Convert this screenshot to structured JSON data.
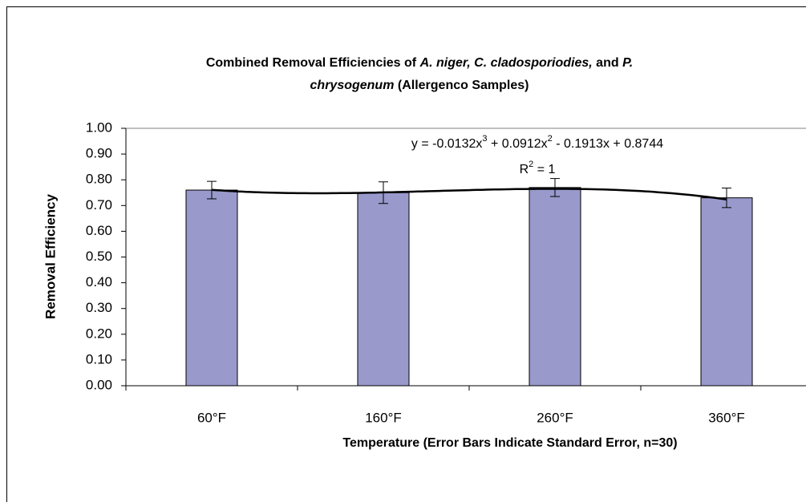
{
  "chart_data": {
    "type": "bar",
    "title_lines": [
      [
        {
          "text": "Combined Removal Efficiencies of "
        },
        {
          "text": "A. niger, C. cladosporiodies,",
          "italic": true
        },
        {
          "text": " and "
        },
        {
          "text": "P.",
          "italic": true
        }
      ],
      [
        {
          "text": "chrysogenum",
          "italic": true
        },
        {
          "text": "  (Allergenco Samples)"
        }
      ]
    ],
    "xlabel": "Temperature (Error Bars Indicate Standard Error, n=30)",
    "ylabel": "Removal Efficiency",
    "categories": [
      "60°F",
      "160°F",
      "260°F",
      "360°F"
    ],
    "values": [
      0.76,
      0.75,
      0.77,
      0.73
    ],
    "errors": [
      0.034,
      0.042,
      0.035,
      0.038
    ],
    "color": "#9999cc",
    "ylim": [
      0,
      1
    ],
    "yticks": [
      {
        "value": 0,
        "label": "0.00"
      },
      {
        "value": 0.1,
        "label": "0.10"
      },
      {
        "value": 0.2,
        "label": "0.20"
      },
      {
        "value": 0.3,
        "label": "0.30"
      },
      {
        "value": 0.4,
        "label": "0.40"
      },
      {
        "value": 0.5,
        "label": "0.50"
      },
      {
        "value": 0.6,
        "label": "0.60"
      },
      {
        "value": 0.7,
        "label": "0.70"
      },
      {
        "value": 0.8,
        "label": "0.80"
      },
      {
        "value": 0.9,
        "label": "0.90"
      },
      {
        "value": 1,
        "label": "1.00"
      }
    ],
    "trendline": {
      "coefficients": [
        -0.0132,
        0.0912,
        -0.1913,
        0.8744
      ],
      "equation_parts": [
        "y = -0.0132x",
        "3",
        " + 0.0912x",
        "2",
        " - 0.1913x + 0.8744"
      ],
      "r2_parts": [
        "R",
        "2",
        " = 1"
      ]
    }
  }
}
